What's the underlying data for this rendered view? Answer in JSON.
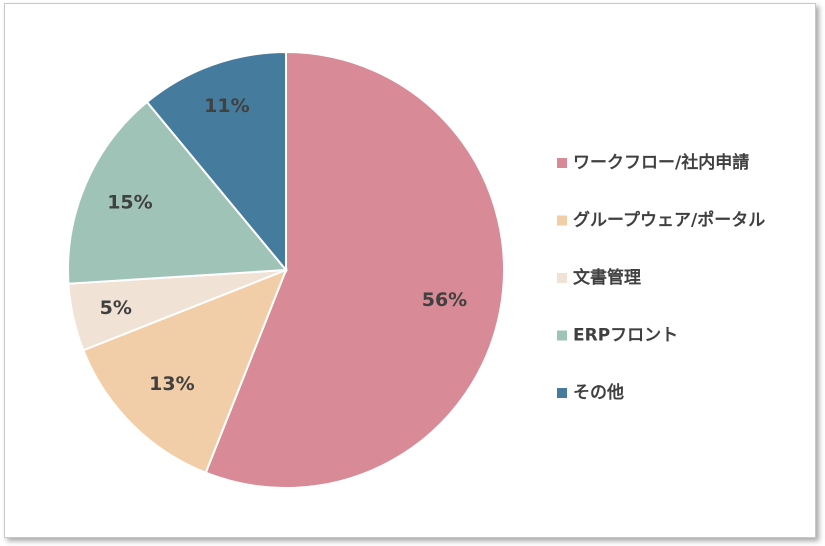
{
  "chart_data": {
    "type": "pie",
    "title": "",
    "categories": [
      "ワークフロー/社内申請",
      "グループウェア/ポータル",
      "文書管理",
      "ERPフロント",
      "その他"
    ],
    "values": [
      56,
      13,
      5,
      15,
      11
    ],
    "data_labels": [
      "56%",
      "13%",
      "5%",
      "15%",
      "11%"
    ],
    "colors": [
      "#d88a96",
      "#f1ceA8",
      "#f0e2d4",
      "#a0c3b8",
      "#457c9e"
    ],
    "start_angle_deg": 0,
    "direction": "clockwise",
    "legend": "right",
    "grid": false
  }
}
